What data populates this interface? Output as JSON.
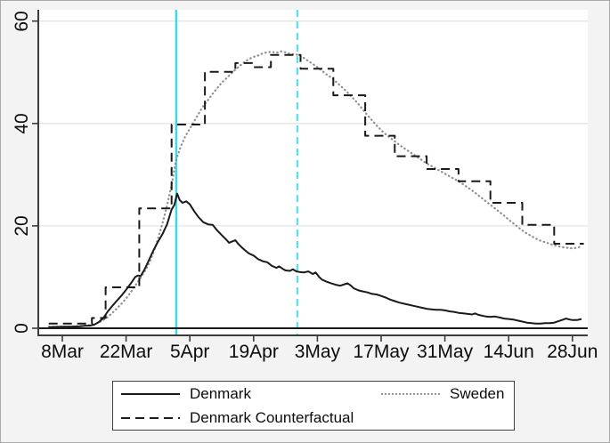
{
  "chart_data": {
    "type": "line",
    "title": "",
    "xlabel": "",
    "ylabel": "",
    "grid": "horizontal-only",
    "x_axis": {
      "unit": "date (2020)",
      "tick_labels": [
        "8Mar",
        "22Mar",
        "5Apr",
        "19Apr",
        "3May",
        "17May",
        "31May",
        "14Jun",
        "28Jun"
      ],
      "tick_days": [
        0,
        14,
        28,
        42,
        56,
        70,
        84,
        98,
        112
      ],
      "range_days": [
        -5.3,
        116
      ]
    },
    "y_axis": {
      "tick_labels": [
        "0",
        "20",
        "40",
        "60"
      ],
      "tick_values": [
        0,
        20,
        40,
        60
      ],
      "range": [
        -1.4,
        62.2
      ],
      "zero_line": true
    },
    "vlines": [
      {
        "name": "solid-cyan-vline",
        "day": 25.0,
        "near_date": "2Apr",
        "style": "solid",
        "color": "#29dcef"
      },
      {
        "name": "dashed-cyan-vline",
        "day": 51.6,
        "near_date": "29Apr",
        "style": "dashed",
        "color": "#56e3f2"
      }
    ],
    "legend": {
      "position": "bottom",
      "items": [
        {
          "label": "Denmark",
          "style": "solid",
          "color": "#1a1a1a"
        },
        {
          "label": "Sweden",
          "style": "dotted",
          "color": "#8f8f8f"
        },
        {
          "label": "Denmark Counterfactual",
          "style": "dashed",
          "color": "#1a1a1a"
        }
      ]
    },
    "series": [
      {
        "name": "Sweden",
        "style": "dotted",
        "color": "#8f8f8f",
        "points": [
          [
            -3,
            0.3
          ],
          [
            0,
            0.3
          ],
          [
            3,
            0.4
          ],
          [
            5,
            0.5
          ],
          [
            7,
            0.8
          ],
          [
            8,
            1.1
          ],
          [
            9,
            1.6
          ],
          [
            10,
            2.2
          ],
          [
            11,
            3.0
          ],
          [
            12,
            3.9
          ],
          [
            13,
            4.8
          ],
          [
            14,
            5.8
          ],
          [
            15,
            7.0
          ],
          [
            16,
            8.3
          ],
          [
            17,
            9.6
          ],
          [
            18,
            11.0
          ],
          [
            19,
            12.6
          ],
          [
            20,
            14.8
          ],
          [
            21,
            17.5
          ],
          [
            22,
            20.5
          ],
          [
            23,
            24.0
          ],
          [
            24,
            28.0
          ],
          [
            25,
            33.0
          ],
          [
            26,
            35.5
          ],
          [
            27,
            37.5
          ],
          [
            28,
            39.0
          ],
          [
            29,
            40.5
          ],
          [
            30,
            42.0
          ],
          [
            31,
            43.5
          ],
          [
            32,
            44.6
          ],
          [
            33,
            45.8
          ],
          [
            34,
            46.9
          ],
          [
            35,
            48.0
          ],
          [
            36,
            48.8
          ],
          [
            37,
            49.7
          ],
          [
            38,
            50.5
          ],
          [
            39,
            51.3
          ],
          [
            40,
            52.0
          ],
          [
            41,
            52.6
          ],
          [
            42,
            53.0
          ],
          [
            43,
            53.3
          ],
          [
            44,
            53.7
          ],
          [
            45,
            53.9
          ],
          [
            46,
            54.0
          ],
          [
            47,
            53.8
          ],
          [
            48,
            54.1
          ],
          [
            49,
            53.9
          ],
          [
            50,
            53.6
          ],
          [
            51,
            53.5
          ],
          [
            52,
            53.4
          ],
          [
            53,
            52.8
          ],
          [
            54,
            52.2
          ],
          [
            55,
            51.6
          ],
          [
            56,
            51.0
          ],
          [
            57,
            50.3
          ],
          [
            58,
            49.6
          ],
          [
            59,
            49.0
          ],
          [
            60,
            48.2
          ],
          [
            61,
            47.4
          ],
          [
            62,
            46.6
          ],
          [
            63,
            45.7
          ],
          [
            64,
            44.8
          ],
          [
            65,
            43.8
          ],
          [
            66,
            42.7
          ],
          [
            67,
            41.6
          ],
          [
            68,
            40.6
          ],
          [
            69,
            39.6
          ],
          [
            70,
            38.7
          ],
          [
            71,
            37.9
          ],
          [
            72,
            37.2
          ],
          [
            73,
            36.5
          ],
          [
            74,
            35.8
          ],
          [
            75,
            35.2
          ],
          [
            76,
            34.6
          ],
          [
            77,
            34.0
          ],
          [
            78,
            33.4
          ],
          [
            79,
            32.8
          ],
          [
            80,
            32.2
          ],
          [
            81,
            31.7
          ],
          [
            82,
            31.2
          ],
          [
            83,
            30.7
          ],
          [
            84,
            30.2
          ],
          [
            85,
            29.7
          ],
          [
            86,
            29.2
          ],
          [
            87,
            28.7
          ],
          [
            88,
            28.1
          ],
          [
            89,
            27.5
          ],
          [
            90,
            26.9
          ],
          [
            91,
            26.2
          ],
          [
            92,
            25.5
          ],
          [
            93,
            24.8
          ],
          [
            94,
            24.1
          ],
          [
            95,
            23.4
          ],
          [
            96,
            22.7
          ],
          [
            97,
            22.0
          ],
          [
            98,
            21.2
          ],
          [
            99,
            20.5
          ],
          [
            100,
            19.8
          ],
          [
            101,
            19.1
          ],
          [
            102,
            18.5
          ],
          [
            103,
            18.0
          ],
          [
            104,
            17.5
          ],
          [
            105,
            17.1
          ],
          [
            106,
            16.8
          ],
          [
            107,
            16.5
          ],
          [
            108,
            16.2
          ],
          [
            109,
            16.0
          ],
          [
            110,
            15.8
          ],
          [
            111,
            15.7
          ],
          [
            112,
            15.6
          ],
          [
            113,
            15.7
          ],
          [
            114,
            16.0
          ]
        ]
      },
      {
        "name": "Denmark Counterfactual",
        "style": "dashed",
        "color": "#1a1a1a",
        "points": [
          [
            -3,
            0.9
          ],
          [
            6.5,
            0.9
          ],
          [
            6.5,
            2.0
          ],
          [
            9.5,
            2.0
          ],
          [
            9.5,
            8.0
          ],
          [
            16.9,
            8.0
          ],
          [
            16.9,
            23.4
          ],
          [
            24,
            23.4
          ],
          [
            24,
            39.8
          ],
          [
            31.3,
            39.8
          ],
          [
            31.3,
            50.1
          ],
          [
            38,
            50.1
          ],
          [
            38,
            51.8
          ],
          [
            42,
            51.8
          ],
          [
            42,
            51.0
          ],
          [
            45.8,
            51.0
          ],
          [
            45.8,
            53.4
          ],
          [
            52.3,
            53.4
          ],
          [
            52.3,
            50.7
          ],
          [
            59.5,
            50.7
          ],
          [
            59.5,
            45.5
          ],
          [
            66.5,
            45.5
          ],
          [
            66.5,
            37.6
          ],
          [
            73,
            37.6
          ],
          [
            73,
            33.6
          ],
          [
            80,
            33.6
          ],
          [
            80,
            31.1
          ],
          [
            87,
            31.1
          ],
          [
            87,
            28.7
          ],
          [
            94,
            28.7
          ],
          [
            94,
            24.5
          ],
          [
            101,
            24.5
          ],
          [
            101,
            20.2
          ],
          [
            108,
            20.2
          ],
          [
            108,
            16.5
          ],
          [
            114.5,
            16.5
          ]
        ]
      },
      {
        "name": "Denmark",
        "style": "solid",
        "color": "#1a1a1a",
        "points": [
          [
            -3,
            0.2
          ],
          [
            0,
            0.3
          ],
          [
            2,
            0.3
          ],
          [
            4,
            0.4
          ],
          [
            5,
            0.5
          ],
          [
            6,
            0.5
          ],
          [
            7,
            0.7
          ],
          [
            8,
            1.2
          ],
          [
            9,
            2.0
          ],
          [
            10,
            3.3
          ],
          [
            11,
            4.4
          ],
          [
            12,
            5.4
          ],
          [
            13,
            6.4
          ],
          [
            14,
            7.5
          ],
          [
            15,
            8.7
          ],
          [
            16,
            10.0
          ],
          [
            16.6,
            10.3
          ],
          [
            17.2,
            10.2
          ],
          [
            18,
            11.4
          ],
          [
            19,
            13.3
          ],
          [
            20,
            15.2
          ],
          [
            21,
            16.9
          ],
          [
            22,
            18.4
          ],
          [
            23,
            20.3
          ],
          [
            24,
            23.2
          ],
          [
            24.6,
            24.1
          ],
          [
            25.2,
            26.3
          ],
          [
            25.8,
            25.0
          ],
          [
            26.4,
            24.5
          ],
          [
            27.2,
            24.8
          ],
          [
            28,
            24.2
          ],
          [
            29,
            22.8
          ],
          [
            30,
            21.6
          ],
          [
            31,
            20.7
          ],
          [
            32,
            20.3
          ],
          [
            33,
            20.2
          ],
          [
            34,
            19.1
          ],
          [
            35,
            18.2
          ],
          [
            36,
            17.3
          ],
          [
            36.6,
            16.7
          ],
          [
            37.4,
            17.0
          ],
          [
            38,
            17.2
          ],
          [
            38.6,
            16.5
          ],
          [
            39.4,
            15.8
          ],
          [
            40,
            15.3
          ],
          [
            41,
            14.6
          ],
          [
            42,
            14.2
          ],
          [
            43,
            13.5
          ],
          [
            44,
            13.1
          ],
          [
            45,
            12.9
          ],
          [
            46,
            12.2
          ],
          [
            47,
            11.8
          ],
          [
            47.6,
            12.1
          ],
          [
            48.4,
            11.6
          ],
          [
            49,
            11.3
          ],
          [
            50,
            11.2
          ],
          [
            50.6,
            11.5
          ],
          [
            51.4,
            11.1
          ],
          [
            52,
            11.0
          ],
          [
            53,
            10.9
          ],
          [
            54,
            11.1
          ],
          [
            55,
            10.6
          ],
          [
            55.6,
            10.9
          ],
          [
            56.4,
            10.0
          ],
          [
            57,
            9.5
          ],
          [
            58,
            9.1
          ],
          [
            59,
            8.8
          ],
          [
            60,
            8.5
          ],
          [
            61,
            8.3
          ],
          [
            62,
            8.6
          ],
          [
            62.6,
            8.8
          ],
          [
            63.4,
            8.3
          ],
          [
            64,
            7.8
          ],
          [
            65,
            7.4
          ],
          [
            66,
            7.2
          ],
          [
            67,
            7.0
          ],
          [
            68,
            6.7
          ],
          [
            69,
            6.6
          ],
          [
            70,
            6.3
          ],
          [
            71,
            6.0
          ],
          [
            72,
            5.6
          ],
          [
            73,
            5.3
          ],
          [
            74,
            5.0
          ],
          [
            75,
            4.8
          ],
          [
            76,
            4.6
          ],
          [
            77,
            4.4
          ],
          [
            78,
            4.2
          ],
          [
            79,
            4.0
          ],
          [
            80,
            3.8
          ],
          [
            81,
            3.7
          ],
          [
            82,
            3.6
          ],
          [
            83,
            3.6
          ],
          [
            84,
            3.5
          ],
          [
            85,
            3.3
          ],
          [
            86,
            3.2
          ],
          [
            87,
            3.0
          ],
          [
            88,
            2.9
          ],
          [
            89,
            2.8
          ],
          [
            90,
            2.7
          ],
          [
            90.6,
            2.9
          ],
          [
            91.4,
            2.6
          ],
          [
            92,
            2.5
          ],
          [
            93,
            2.3
          ],
          [
            94,
            2.2
          ],
          [
            95,
            2.3
          ],
          [
            96,
            2.1
          ],
          [
            97,
            1.9
          ],
          [
            98,
            1.8
          ],
          [
            99,
            1.7
          ],
          [
            100,
            1.5
          ],
          [
            101,
            1.3
          ],
          [
            102,
            1.1
          ],
          [
            103,
            1.0
          ],
          [
            104,
            0.9
          ],
          [
            105,
            0.9
          ],
          [
            106,
            1.0
          ],
          [
            107,
            1.0
          ],
          [
            108,
            1.1
          ],
          [
            109,
            1.4
          ],
          [
            110,
            1.7
          ],
          [
            110.6,
            1.9
          ],
          [
            111.4,
            1.7
          ],
          [
            112,
            1.6
          ],
          [
            113,
            1.6
          ],
          [
            114,
            1.8
          ]
        ]
      }
    ],
    "colors": {
      "plot_background": "#ffffff",
      "figure_background": "#f2f3f2",
      "gridline": "#e4e4e4",
      "axis": "#3c3c3c",
      "zero_line": "#1a1a1a"
    }
  }
}
